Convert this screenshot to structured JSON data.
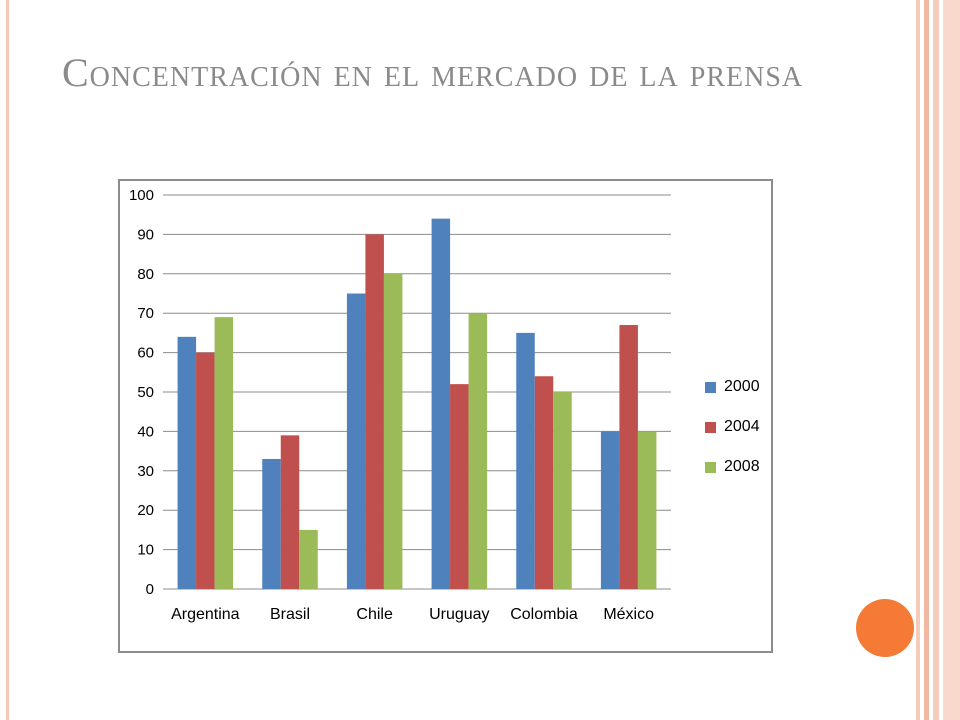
{
  "slide": {
    "title": "Concentración en el mercado de la prensa"
  },
  "colors": {
    "accent": "#f47a35",
    "series_2000": "#4f81bd",
    "series_2004": "#c0504d",
    "series_2008": "#9bbb59"
  },
  "chart_data": {
    "type": "bar",
    "categories": [
      "Argentina",
      "Brasil",
      "Chile",
      "Uruguay",
      "Colombia",
      "México"
    ],
    "series": [
      {
        "name": "2000",
        "values": [
          64,
          33,
          75,
          94,
          65,
          40
        ],
        "color": "#4f81bd"
      },
      {
        "name": "2004",
        "values": [
          60,
          39,
          90,
          52,
          54,
          67
        ],
        "color": "#c0504d"
      },
      {
        "name": "2008",
        "values": [
          69,
          15,
          80,
          70,
          50,
          40
        ],
        "color": "#9bbb59"
      }
    ],
    "title": "",
    "xlabel": "",
    "ylabel": "",
    "ylim": [
      0,
      100
    ],
    "yticks": [
      "0",
      "10",
      "20",
      "30",
      "40",
      "50",
      "60",
      "70",
      "80",
      "90",
      "100"
    ],
    "grid": true,
    "legend": "right"
  }
}
